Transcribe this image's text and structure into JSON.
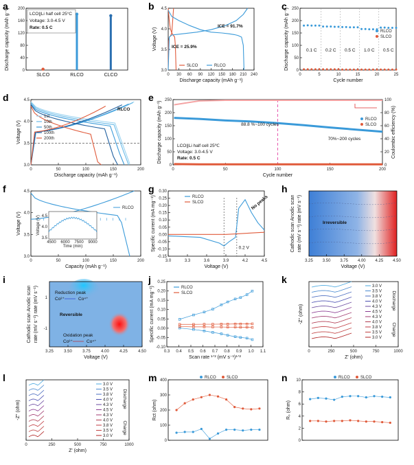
{
  "figure": {
    "panel_letters": [
      "a",
      "b",
      "c",
      "d",
      "e",
      "f",
      "g",
      "h",
      "i",
      "j",
      "k",
      "l",
      "m",
      "n"
    ]
  },
  "chart_data": [
    {
      "id": "a",
      "type": "bar",
      "categories": [
        "SLCO",
        "RLCO",
        "CLCO"
      ],
      "values": [
        3,
        181,
        176
      ],
      "ylabel": "Discharge capacity (mAh g⁻¹)",
      "ylim": [
        0,
        200
      ],
      "yticks": [
        "0",
        "40",
        "80",
        "120",
        "160",
        "200"
      ],
      "annotations": [
        "LCO||Li half cell 25°C",
        "Voltage: 3.0-4.5 V",
        "Rate: 0.5 C"
      ],
      "colors": [
        "#e05a3a",
        "#3a9ad9",
        "#2a6fb0"
      ]
    },
    {
      "id": "b",
      "type": "line",
      "xlabel": "Discharge capacity (mAh g⁻¹)",
      "ylabel": "Voltage (V)",
      "xlim": [
        0,
        240
      ],
      "ylim": [
        3.0,
        4.5
      ],
      "xticks": [
        "0",
        "30",
        "60",
        "90",
        "120",
        "150",
        "180",
        "210",
        "240"
      ],
      "yticks": [
        "3.0",
        "3.5",
        "4.0",
        "4.5"
      ],
      "series": [
        {
          "name": "SLCO",
          "color": "#e05a3a",
          "x": [
            0,
            3,
            6,
            10,
            14,
            18,
            20,
            22
          ],
          "y": [
            4.5,
            4.2,
            4.0,
            3.9,
            3.85,
            3.8,
            3.6,
            3.0
          ]
        },
        {
          "name": "SLCO charge",
          "color": "#e05a3a",
          "x": [
            0,
            1,
            3,
            6,
            10,
            15
          ],
          "y": [
            3.0,
            3.7,
            3.8,
            3.82,
            3.9,
            4.5
          ]
        },
        {
          "name": "RLCO",
          "color": "#3a9ad9",
          "x": [
            0,
            10,
            30,
            60,
            90,
            120,
            150,
            170,
            185,
            195,
            205,
            210,
            212
          ],
          "y": [
            4.45,
            4.3,
            4.2,
            4.08,
            3.98,
            3.92,
            3.9,
            3.88,
            3.86,
            3.84,
            3.8,
            3.6,
            3.0
          ]
        },
        {
          "name": "RLCO charge",
          "color": "#3a9ad9",
          "x": [
            0,
            3,
            10,
            40,
            80,
            120,
            160,
            190,
            210,
            222
          ],
          "y": [
            3.0,
            3.8,
            3.85,
            3.88,
            3.92,
            3.98,
            4.08,
            4.2,
            4.35,
            4.5
          ]
        }
      ],
      "annotations": [
        "ICE = 25.9%",
        "ICE = 91.7%"
      ]
    },
    {
      "id": "c",
      "type": "scatter",
      "xlabel": "Cycle number",
      "ylabel": "Discharge capacity (mAh g⁻¹)",
      "xlim": [
        0,
        25
      ],
      "ylim": [
        0,
        250
      ],
      "xticks": [
        "0",
        "5",
        "10",
        "15",
        "20",
        "25"
      ],
      "yticks": [
        "0",
        "50",
        "100",
        "150",
        "200",
        "250"
      ],
      "series": [
        {
          "name": "RLCO",
          "color": "#3a9ad9",
          "x": [
            1,
            2,
            3,
            4,
            5,
            6,
            7,
            8,
            9,
            10,
            11,
            12,
            13,
            14,
            15,
            16,
            17,
            18,
            19,
            20,
            21,
            22,
            23,
            24,
            25
          ],
          "y": [
            180,
            181,
            180,
            180,
            180,
            176,
            176,
            176,
            175,
            175,
            174,
            174,
            173,
            173,
            173,
            166,
            166,
            165,
            165,
            165,
            172,
            172,
            171,
            171,
            171
          ]
        },
        {
          "name": "SLCO",
          "color": "#e05a3a",
          "x": [
            1,
            2,
            3,
            4,
            5,
            6,
            7,
            8,
            9,
            10,
            11,
            12,
            13,
            14,
            15,
            16,
            17,
            18,
            19,
            20,
            21,
            22,
            23,
            24,
            25
          ],
          "y": [
            3,
            3,
            3,
            3,
            3,
            3,
            3,
            3,
            3,
            3,
            2,
            2,
            2,
            2,
            2,
            2,
            2,
            2,
            2,
            2,
            2,
            2,
            2,
            2,
            2
          ]
        }
      ],
      "annotations": [
        "0.1 C",
        "0.2 C",
        "0.5 C",
        "1.0 C",
        "0.5 C"
      ]
    },
    {
      "id": "d",
      "type": "line",
      "xlabel": "Discharge capacity (mAh g⁻¹)",
      "ylabel": "Voltage (V)",
      "xlim": [
        0,
        200
      ],
      "ylim": [
        3.0,
        4.5
      ],
      "xticks": [
        "0",
        "50",
        "100",
        "150",
        "200"
      ],
      "yticks": [
        "3.0",
        "3.5",
        "4.0",
        "4.5"
      ],
      "legend": [
        "1st",
        "10th",
        "50th",
        "100th",
        "200th"
      ],
      "title": "RLCO",
      "series": [
        {
          "name": "1st",
          "color": "#9bd3f0",
          "cap": 180,
          "v0": 4.45,
          "plateau": 3.92
        },
        {
          "name": "10th",
          "color": "#6bbbe8",
          "cap": 178,
          "v0": 4.43,
          "plateau": 3.88
        },
        {
          "name": "50th",
          "color": "#3a9ad9",
          "cap": 170,
          "v0": 4.4,
          "plateau": 3.85
        },
        {
          "name": "100th",
          "color": "#1f5f9f",
          "cap": 158,
          "v0": 4.38,
          "plateau": 3.78
        },
        {
          "name": "200th",
          "color": "#e05a3a",
          "cap": 128,
          "v0": 4.35,
          "plateau": 3.65
        }
      ]
    },
    {
      "id": "e",
      "type": "scatter",
      "xlabel": "Cycle number",
      "ylabel": "Discharge capacity (mAh g⁻¹)",
      "y2label": "Coulombic efficiency (%)",
      "xlim": [
        0,
        200
      ],
      "ylim": [
        0,
        250
      ],
      "y2lim": [
        0,
        100
      ],
      "xticks": [
        "0",
        "50",
        "100",
        "150",
        "200"
      ],
      "yticks": [
        "0",
        "50",
        "100",
        "150",
        "200",
        "250"
      ],
      "y2ticks": [
        "0",
        "20",
        "40",
        "60",
        "80",
        "100"
      ],
      "series": [
        {
          "name": "RLCO",
          "color": "#3a9ad9",
          "x": [
            1,
            25,
            50,
            75,
            100,
            125,
            150,
            175,
            200
          ],
          "y": [
            180,
            176,
            170,
            166,
            160,
            152,
            143,
            135,
            127
          ]
        },
        {
          "name": "SLCO",
          "color": "#e05a3a",
          "x": [
            1,
            25,
            50,
            75,
            100,
            125,
            150,
            175,
            200
          ],
          "y": [
            3,
            2,
            2,
            2,
            2,
            2,
            2,
            2,
            2
          ]
        },
        {
          "name": "CE",
          "color": "#f4a3a3",
          "x": [
            1,
            25,
            50,
            75,
            100,
            125,
            150,
            175,
            200
          ],
          "y2": [
            92,
            98,
            99,
            99,
            99,
            99,
            99,
            99,
            99
          ]
        }
      ],
      "annotations": [
        "88.8 %~100 cycles",
        "70%~200 cycles",
        "LCO||Li half cell 25℃",
        "Voltage: 3.0-4.5 V",
        "Rate: 0.5 C"
      ]
    },
    {
      "id": "f",
      "type": "line",
      "xlabel": "Capacity (mAh g⁻¹)",
      "ylabel": "Voltage (V)",
      "xlim": [
        0,
        200
      ],
      "ylim": [
        3.0,
        4.5
      ],
      "xticks": [
        "0",
        "50",
        "100",
        "150",
        "200"
      ],
      "yticks": [
        "3.0",
        "3.5",
        "4.0",
        "4.5"
      ],
      "title": "RLCO",
      "inset": {
        "xlabel": "Time (min)",
        "ylabel": "Voltage (V)",
        "xticks": [
          "4500",
          "6000",
          "7500",
          "9000"
        ],
        "yticks": [
          "3.5",
          "4.0",
          "4.5"
        ]
      }
    },
    {
      "id": "g",
      "type": "line",
      "xlabel": "Voltage (V)",
      "ylabel": "Specific current (mA mg⁻¹)",
      "xlim": [
        3.0,
        4.5
      ],
      "ylim": [
        -0.15,
        0.3
      ],
      "xticks": [
        "3.0",
        "3.3",
        "3.6",
        "3.9",
        "4.2",
        "4.5"
      ],
      "yticks": [
        "-0.15",
        "-0.10",
        "-0.05",
        "0.00",
        "0.05",
        "0.10",
        "0.15",
        "0.20",
        "0.25",
        "0.30"
      ],
      "series": [
        {
          "name": "RLCO",
          "color": "#3a9ad9",
          "x": [
            3.0,
            3.5,
            3.8,
            3.87,
            3.95,
            4.05,
            4.1,
            4.2,
            4.3,
            4.4,
            4.5
          ],
          "y": [
            -0.01,
            -0.02,
            -0.06,
            -0.08,
            -0.05,
            -0.02,
            0.18,
            0.24,
            0.15,
            0.08,
            0.03
          ]
        },
        {
          "name": "SLCO",
          "color": "#e05a3a",
          "x": [
            3.0,
            3.5,
            3.9,
            4.1,
            4.3,
            4.5
          ],
          "y": [
            0.0,
            0.0,
            0.0,
            0.005,
            0.01,
            0.015
          ]
        }
      ],
      "annotations": [
        "No peaks",
        "0.2 V"
      ]
    },
    {
      "id": "h",
      "type": "heatmap",
      "xlabel": "Voltage (V)",
      "ylabel": "Cathodic scan rate (mV s⁻¹)  Anodic scan rate (mV s⁻¹)",
      "xticks": [
        "3.25",
        "3.50",
        "3.75",
        "4.00",
        "4.25",
        "4.50"
      ],
      "annotation": "Irreversible"
    },
    {
      "id": "i",
      "type": "heatmap",
      "xlabel": "Voltage (V)",
      "ylabel": "Cathodic scan rate (mV s⁻¹)  Anodic scan rate (mV s⁻¹)",
      "xticks": [
        "3.25",
        "3.50",
        "3.75",
        "4.00",
        "4.25",
        "4.50"
      ],
      "yticks": [
        "-1",
        "1"
      ],
      "annotations": [
        "Reversible",
        "Reduction peak",
        "Co³⁺",
        "Co⁴⁺",
        "Oxidation peak",
        "Co³⁺",
        "Co⁴⁺"
      ]
    },
    {
      "id": "j",
      "type": "line",
      "xlabel": "Scan rate ¹ᐟ² (mV s⁻¹)¹ᐟ²",
      "ylabel": "Specific current (mA mg⁻¹)",
      "xlim": [
        0.2,
        1.1
      ],
      "ylim": [
        -0.15,
        0.3
      ],
      "xticks": [
        "0.3",
        "0.4",
        "0.5",
        "0.6",
        "0.7",
        "0.8",
        "0.9",
        "1.0",
        "1.1"
      ],
      "yticks": [
        "-0.10",
        "-0.05",
        "0.00",
        "0.05",
        "0.10",
        "0.15",
        "0.20",
        "0.25"
      ],
      "series": [
        {
          "name": "RLCO anodic",
          "color": "#3a9ad9",
          "x": [
            0.32,
            0.45,
            0.55,
            0.63,
            0.71,
            0.77,
            0.84,
            0.89,
            0.95,
            1.0
          ],
          "y": [
            0.04,
            0.07,
            0.09,
            0.11,
            0.14,
            0.16,
            0.18,
            0.19,
            0.21,
            0.235
          ]
        },
        {
          "name": "RLCO cathodic",
          "color": "#3a9ad9",
          "x": [
            0.32,
            0.45,
            0.55,
            0.63,
            0.71,
            0.77,
            0.84,
            0.89,
            0.95,
            1.0
          ],
          "y": [
            -0.02,
            -0.03,
            -0.04,
            -0.05,
            -0.06,
            -0.07,
            -0.08,
            -0.085,
            -0.09,
            -0.1
          ]
        },
        {
          "name": "SLCO anodic",
          "color": "#e05a3a",
          "x": [
            0.32,
            0.45,
            0.55,
            0.63,
            0.71,
            0.77,
            0.84,
            0.89,
            0.95,
            1.0
          ],
          "y": [
            0.005,
            0.005,
            0.006,
            0.006,
            0.007,
            0.007,
            0.008,
            0.008,
            0.008,
            0.009
          ]
        },
        {
          "name": "SLCO cathodic",
          "color": "#e05a3a",
          "x": [
            0.32,
            0.45,
            0.55,
            0.63,
            0.71,
            0.77,
            0.84,
            0.89,
            0.95,
            1.0
          ],
          "y": [
            -0.01,
            -0.012,
            -0.012,
            -0.013,
            -0.013,
            -0.014,
            -0.014,
            -0.015,
            -0.015,
            -0.016
          ]
        }
      ],
      "legend": [
        "RLCO",
        "SLCO"
      ]
    },
    {
      "id": "k",
      "type": "line",
      "xlabel": "Z' (ohm)",
      "ylabel": "-Z'' (ohm)",
      "xticks": [
        "0",
        "250",
        "500",
        "750",
        "1000"
      ],
      "legend": [
        "3.0 V",
        "3.5 V",
        "3.8 V",
        "4.0 V",
        "4.3 V",
        "4.5 V",
        "4.3 V",
        "4.0 V",
        "3.8 V",
        "3.5 V",
        "3.0 V"
      ],
      "annotations": [
        "Discharge",
        "Charge"
      ]
    },
    {
      "id": "l",
      "type": "line",
      "xlabel": "Z' (ohm)",
      "ylabel": "-Z'' (ohm)",
      "xticks": [
        "0",
        "250",
        "500",
        "750",
        "1000"
      ],
      "legend": [
        "3.0 V",
        "3.5 V",
        "3.8 V",
        "4.0 V",
        "4.3 V",
        "4.5 V",
        "4.3 V",
        "4.0 V",
        "3.8 V",
        "3.5 V",
        "3.0 V"
      ],
      "annotations": [
        "Discharge",
        "Charge"
      ]
    },
    {
      "id": "m",
      "type": "scatter",
      "xlabel": "",
      "ylabel": "Rct (ohm)",
      "ylim": [
        0,
        400
      ],
      "yticks": [
        "0",
        "100",
        "200",
        "300",
        "400"
      ],
      "series": [
        {
          "name": "RLCO",
          "color": "#3a9ad9",
          "x": [
            1,
            2,
            3,
            4,
            5,
            6,
            7,
            8,
            9,
            10,
            11
          ],
          "y": [
            50,
            55,
            55,
            75,
            10,
            45,
            70,
            70,
            65,
            70,
            70
          ]
        },
        {
          "name": "SLCO",
          "color": "#e05a3a",
          "x": [
            1,
            2,
            3,
            4,
            5,
            6,
            7,
            8,
            9,
            10,
            11
          ],
          "y": [
            200,
            245,
            270,
            285,
            300,
            290,
            270,
            220,
            210,
            205,
            210
          ]
        }
      ],
      "legend": [
        "RLCO",
        "SLCO"
      ]
    },
    {
      "id": "n",
      "type": "scatter",
      "xlabel": "",
      "ylabel": "Rₛ (ohm)",
      "ylim": [
        0,
        10
      ],
      "yticks": [
        "0",
        "2",
        "4",
        "6",
        "8",
        "10"
      ],
      "series": [
        {
          "name": "RLCO",
          "color": "#3a9ad9",
          "x": [
            1,
            2,
            3,
            4,
            5,
            6,
            7,
            8,
            9,
            10,
            11
          ],
          "y": [
            6.8,
            7.0,
            6.9,
            6.7,
            7.2,
            7.3,
            7.3,
            7.1,
            7.3,
            7.2,
            7.1
          ]
        },
        {
          "name": "SLCO",
          "color": "#e05a3a",
          "x": [
            1,
            2,
            3,
            4,
            5,
            6,
            7,
            8,
            9,
            10,
            11
          ],
          "y": [
            3.2,
            3.2,
            3.1,
            3.2,
            3.2,
            3.3,
            3.2,
            3.1,
            3.1,
            3.0,
            2.9
          ]
        }
      ],
      "legend": [
        "RLCO",
        "SLCO"
      ]
    }
  ]
}
